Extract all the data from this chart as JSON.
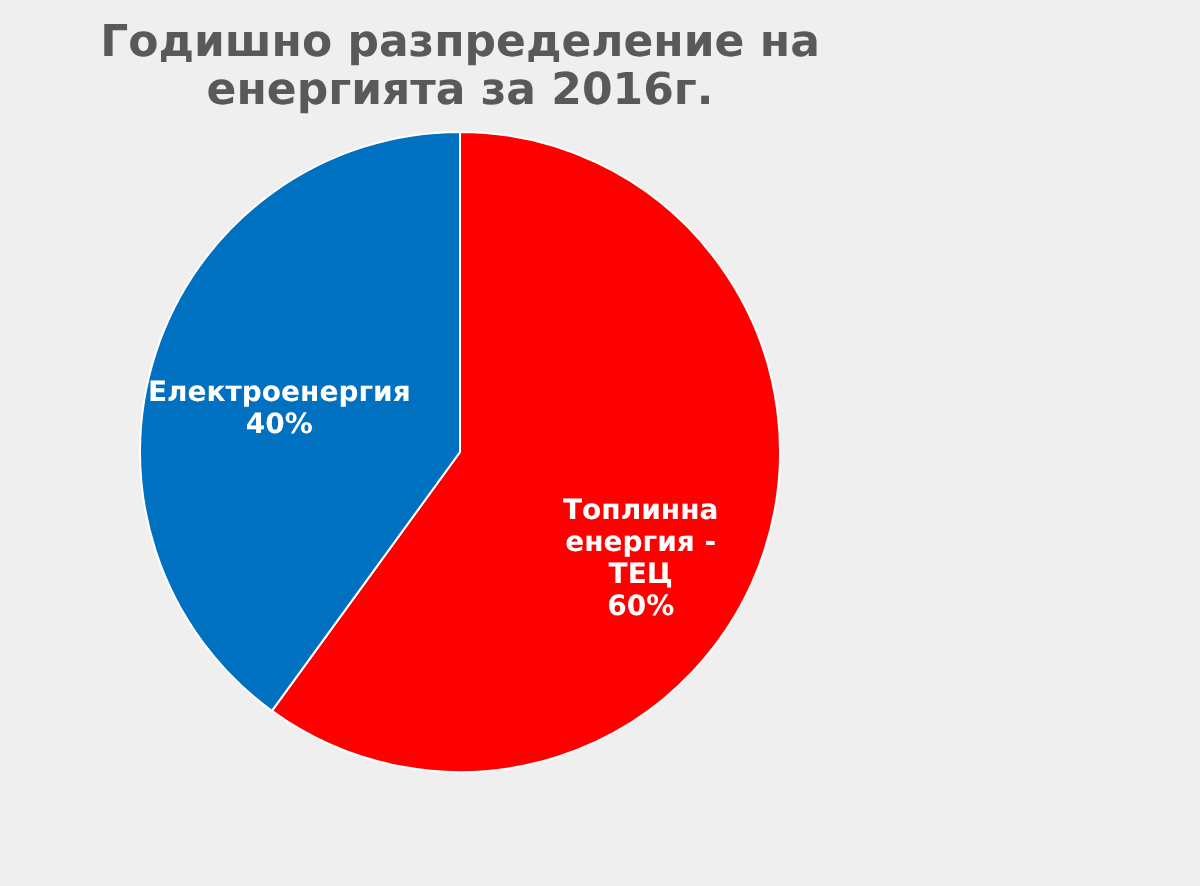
{
  "chart_data": {
    "type": "pie",
    "title": "Годишно разпределение на енергията за 2016г.",
    "categories": [
      "Топлинна енергия - ТЕЦ",
      "Електроенергия"
    ],
    "values": [
      60,
      40
    ],
    "colors": [
      "#ff0000",
      "#0070c0"
    ],
    "value_labels": [
      "60%",
      "40%"
    ],
    "legend": false
  }
}
